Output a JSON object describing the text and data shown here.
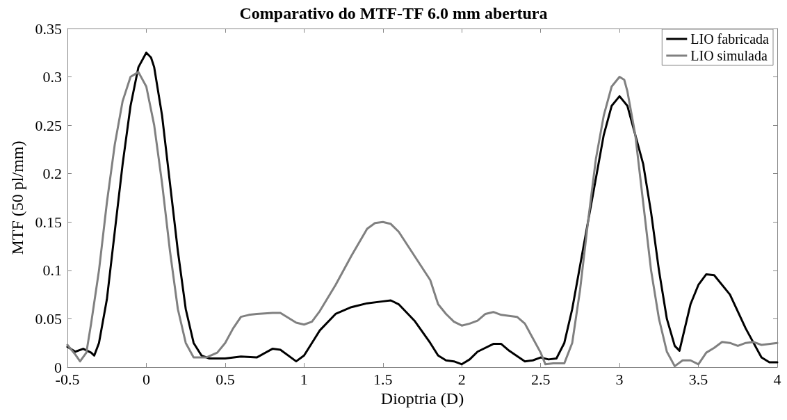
{
  "chart_data": {
    "type": "line",
    "title": "Comparativo do MTF-TF 6.0 mm abertura",
    "xlabel": "Dioptria (D)",
    "ylabel": "MTF (50 pl/mm)",
    "xlim": [
      -0.5,
      4
    ],
    "xticks": [
      -0.5,
      0,
      0.5,
      1,
      1.5,
      2,
      2.5,
      3,
      3.5,
      4
    ],
    "ylim": [
      0,
      0.35
    ],
    "yticks": [
      0,
      0.05,
      0.1,
      0.15,
      0.2,
      0.25,
      0.3,
      0.35
    ],
    "grid": false,
    "legend": "top right",
    "marker": "none",
    "line_style": "solid",
    "series": [
      {
        "name": "LIO fabricada",
        "color": "#000000",
        "x": [
          -0.5,
          -0.45,
          -0.4,
          -0.35,
          -0.33,
          -0.3,
          -0.25,
          -0.2,
          -0.15,
          -0.1,
          -0.05,
          0,
          0.03,
          0.05,
          0.1,
          0.15,
          0.2,
          0.25,
          0.3,
          0.35,
          0.4,
          0.5,
          0.6,
          0.7,
          0.8,
          0.85,
          0.95,
          1,
          1.05,
          1.1,
          1.2,
          1.3,
          1.4,
          1.5,
          1.55,
          1.6,
          1.7,
          1.8,
          1.85,
          1.9,
          1.95,
          2,
          2.05,
          2.1,
          2.2,
          2.25,
          2.3,
          2.4,
          2.45,
          2.5,
          2.55,
          2.6,
          2.65,
          2.7,
          2.8,
          2.9,
          2.95,
          3,
          3.05,
          3.1,
          3.15,
          3.2,
          3.25,
          3.3,
          3.35,
          3.38,
          3.45,
          3.5,
          3.55,
          3.6,
          3.7,
          3.8,
          3.9,
          3.95,
          4
        ],
        "values": [
          0.021,
          0.016,
          0.019,
          0.015,
          0.012,
          0.025,
          0.07,
          0.14,
          0.21,
          0.27,
          0.31,
          0.325,
          0.32,
          0.31,
          0.26,
          0.19,
          0.12,
          0.06,
          0.025,
          0.012,
          0.009,
          0.009,
          0.011,
          0.01,
          0.019,
          0.018,
          0.006,
          0.012,
          0.025,
          0.038,
          0.055,
          0.062,
          0.066,
          0.068,
          0.069,
          0.065,
          0.048,
          0.025,
          0.012,
          0.007,
          0.006,
          0.003,
          0.008,
          0.016,
          0.024,
          0.024,
          0.017,
          0.006,
          0.007,
          0.01,
          0.008,
          0.009,
          0.025,
          0.06,
          0.15,
          0.24,
          0.27,
          0.28,
          0.27,
          0.24,
          0.21,
          0.16,
          0.1,
          0.05,
          0.022,
          0.017,
          0.065,
          0.085,
          0.096,
          0.095,
          0.075,
          0.04,
          0.01,
          0.005,
          0.005
        ]
      },
      {
        "name": "LIO simulada",
        "color": "#808080",
        "x": [
          -0.5,
          -0.45,
          -0.42,
          -0.38,
          -0.35,
          -0.3,
          -0.25,
          -0.2,
          -0.15,
          -0.1,
          -0.05,
          0,
          0.05,
          0.1,
          0.15,
          0.2,
          0.25,
          0.3,
          0.38,
          0.45,
          0.5,
          0.55,
          0.6,
          0.65,
          0.7,
          0.8,
          0.85,
          0.9,
          0.95,
          1,
          1.05,
          1.1,
          1.2,
          1.3,
          1.4,
          1.45,
          1.5,
          1.55,
          1.6,
          1.7,
          1.8,
          1.85,
          1.9,
          1.95,
          2,
          2.05,
          2.1,
          2.15,
          2.2,
          2.25,
          2.3,
          2.35,
          2.4,
          2.45,
          2.5,
          2.53,
          2.58,
          2.65,
          2.7,
          2.75,
          2.8,
          2.85,
          2.9,
          2.95,
          3,
          3.03,
          3.05,
          3.1,
          3.15,
          3.2,
          3.25,
          3.3,
          3.35,
          3.4,
          3.45,
          3.5,
          3.55,
          3.6,
          3.65,
          3.7,
          3.75,
          3.8,
          3.85,
          3.9,
          4
        ],
        "values": [
          0.023,
          0.013,
          0.006,
          0.015,
          0.045,
          0.1,
          0.17,
          0.23,
          0.275,
          0.3,
          0.305,
          0.29,
          0.25,
          0.19,
          0.12,
          0.06,
          0.025,
          0.01,
          0.01,
          0.015,
          0.025,
          0.04,
          0.052,
          0.054,
          0.055,
          0.056,
          0.056,
          0.051,
          0.046,
          0.044,
          0.047,
          0.058,
          0.085,
          0.115,
          0.143,
          0.149,
          0.15,
          0.148,
          0.14,
          0.115,
          0.09,
          0.065,
          0.055,
          0.047,
          0.043,
          0.045,
          0.048,
          0.055,
          0.057,
          0.054,
          0.053,
          0.052,
          0.045,
          0.03,
          0.015,
          0.003,
          0.004,
          0.004,
          0.025,
          0.08,
          0.15,
          0.215,
          0.26,
          0.29,
          0.3,
          0.297,
          0.285,
          0.24,
          0.17,
          0.1,
          0.05,
          0.016,
          0.001,
          0.007,
          0.007,
          0.003,
          0.015,
          0.02,
          0.026,
          0.025,
          0.022,
          0.025,
          0.026,
          0.023,
          0.025
        ]
      }
    ]
  }
}
